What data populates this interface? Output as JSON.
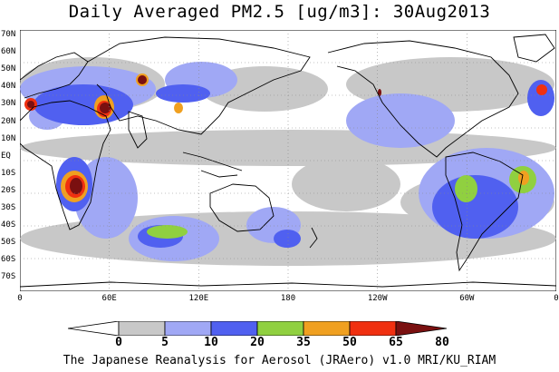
{
  "title": "Daily Averaged PM2.5 [ug/m3]: 30Aug2013",
  "footer": "The Japanese Reanalysis for Aerosol (JRAero) v1.0 MRI/KU_RIAM",
  "lat_labels": [
    "70N",
    "60N",
    "50N",
    "40N",
    "30N",
    "20N",
    "10N",
    "EQ",
    "10S",
    "20S",
    "30S",
    "40S",
    "50S",
    "60S",
    "70S"
  ],
  "lon_labels": [
    "0",
    "60E",
    "120E",
    "180",
    "120W",
    "60W",
    "0"
  ],
  "colorbar": {
    "levels": [
      "0",
      "5",
      "10",
      "20",
      "35",
      "50",
      "65",
      "80"
    ],
    "colors": [
      "#ffffff",
      "#c8c8c8",
      "#a0a8f5",
      "#5060f0",
      "#90d040",
      "#f0a020",
      "#f03010",
      "#7a1010"
    ]
  }
}
